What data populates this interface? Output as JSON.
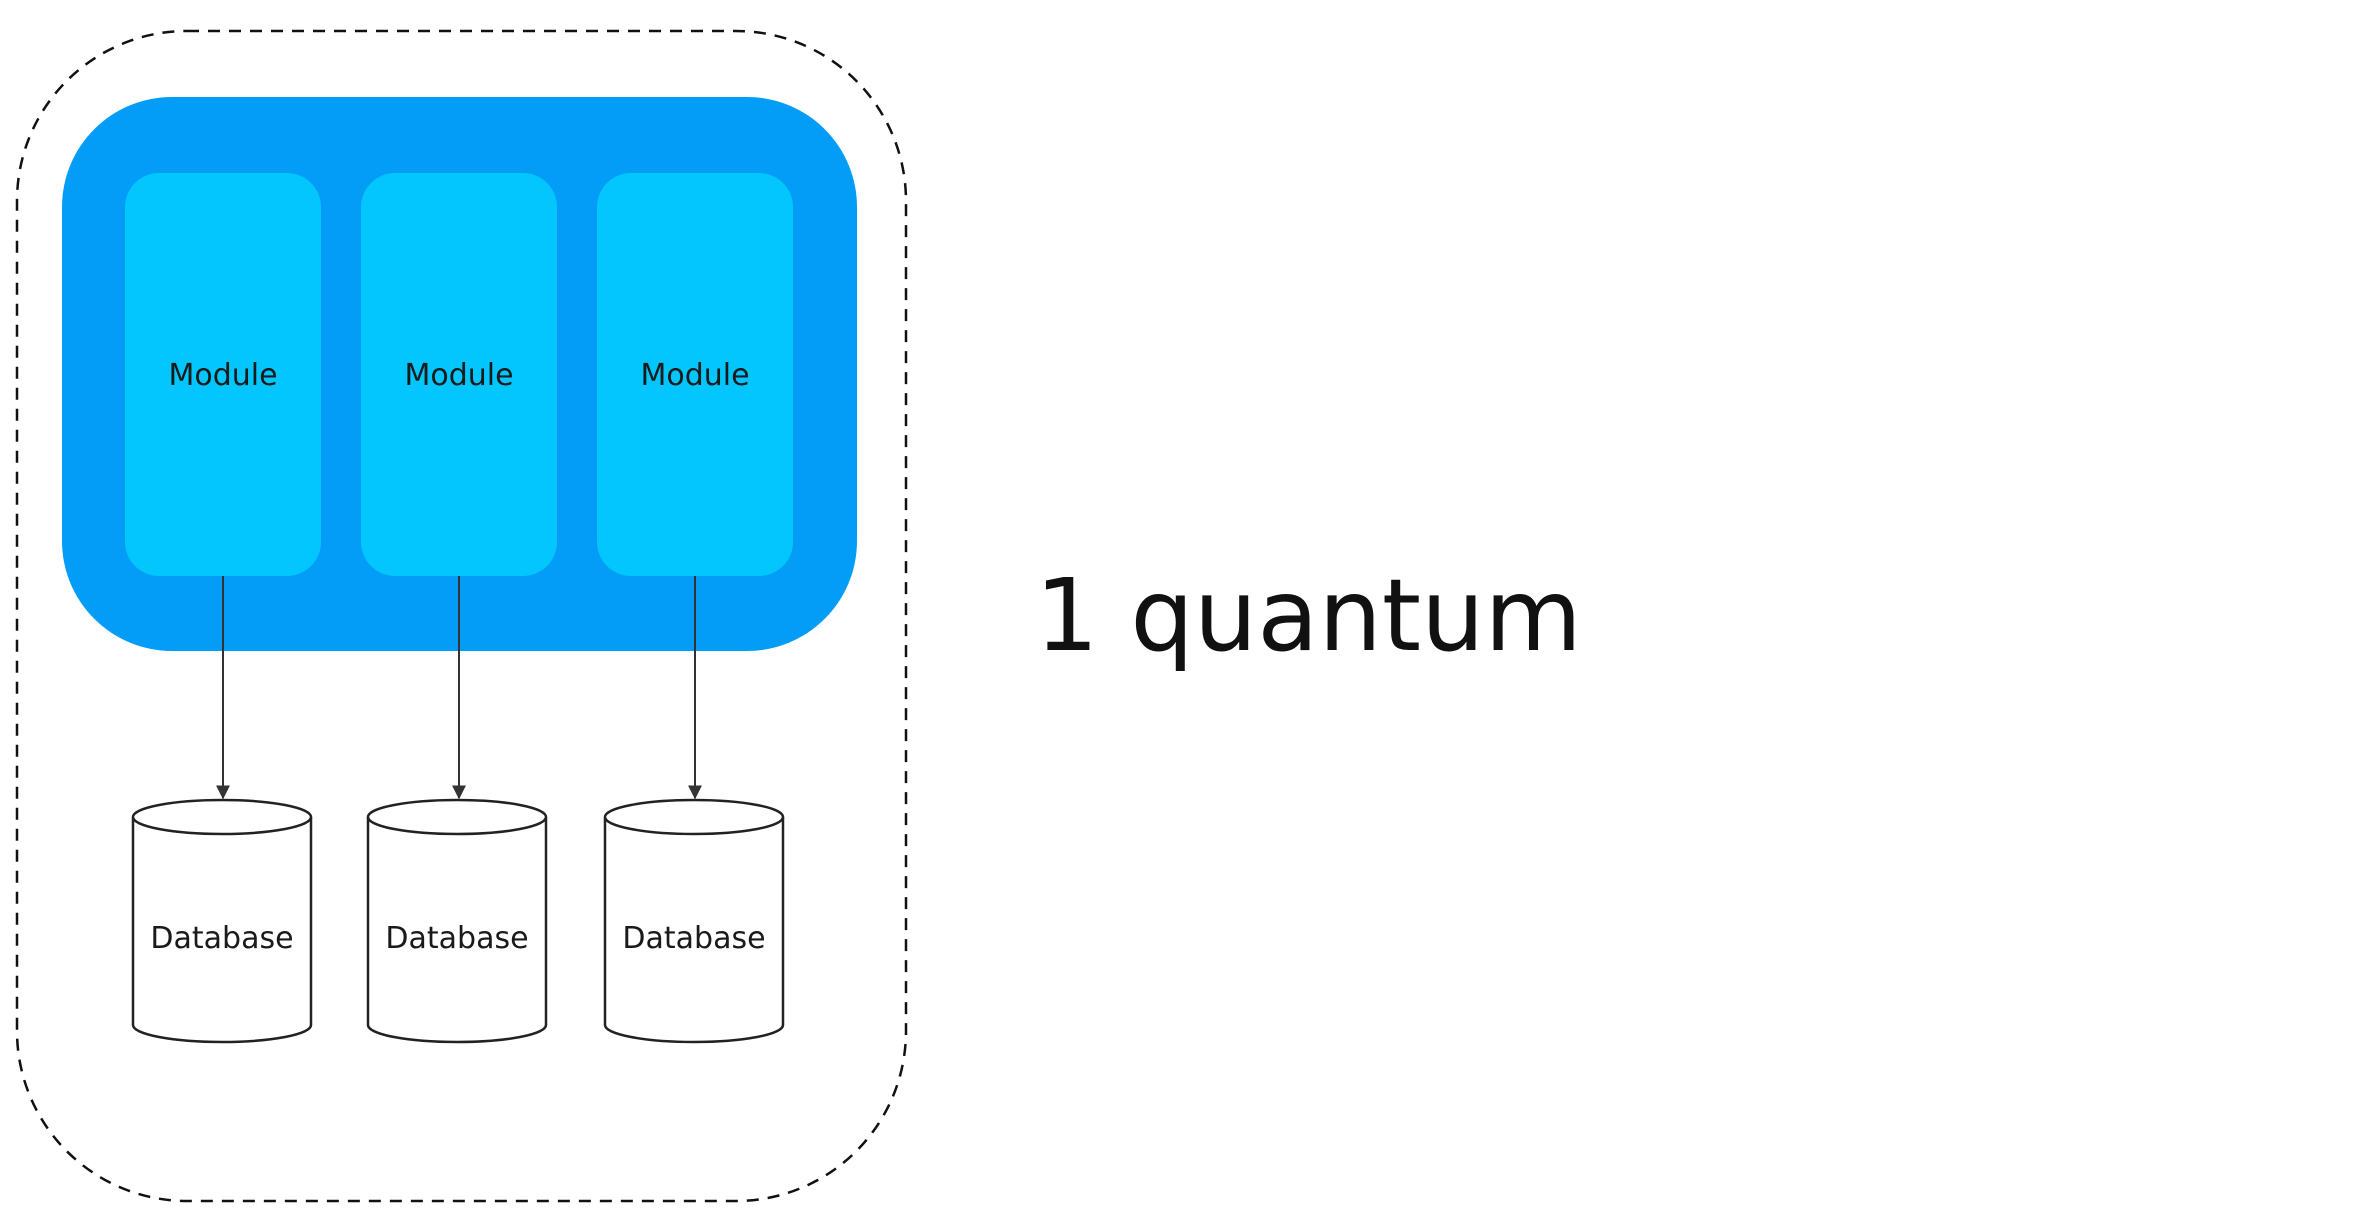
{
  "colors": {
    "outer_container": "#039DF7",
    "module_fill": "#02C6FD",
    "boundary_stroke": "#111111",
    "arrow_stroke": "#333333",
    "db_stroke": "#222222",
    "db_fill": "#ffffff"
  },
  "modules": [
    {
      "label": "Module"
    },
    {
      "label": "Module"
    },
    {
      "label": "Module"
    }
  ],
  "databases": [
    {
      "label": "Database"
    },
    {
      "label": "Database"
    },
    {
      "label": "Database"
    }
  ],
  "quantum_label": "1 quantum"
}
